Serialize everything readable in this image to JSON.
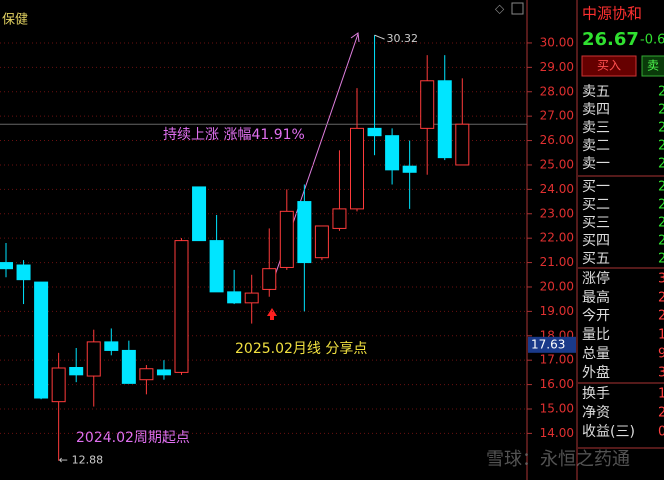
{
  "chart_data": {
    "type": "candlestick",
    "title": "保健",
    "open": [
      21.0,
      20.9,
      20.2,
      15.3,
      16.7,
      16.35,
      17.75,
      17.4,
      16.2,
      16.6,
      16.5,
      24.1,
      21.9,
      19.8,
      19.35,
      19.9,
      20.8,
      23.5,
      21.2,
      22.4,
      23.2,
      26.5,
      26.2,
      24.95,
      26.5,
      28.45,
      25.0
    ],
    "high": [
      21.8,
      21.1,
      20.2,
      17.3,
      17.5,
      18.25,
      18.3,
      17.8,
      16.8,
      17.0,
      22.0,
      24.1,
      22.95,
      20.7,
      20.5,
      22.4,
      24.0,
      24.2,
      22.5,
      25.6,
      28.15,
      30.32,
      26.5,
      26.0,
      29.5,
      29.5,
      28.55
    ],
    "low": [
      20.4,
      19.3,
      15.4,
      12.88,
      16.1,
      15.1,
      17.2,
      16.05,
      15.6,
      16.2,
      16.4,
      21.9,
      19.8,
      19.3,
      18.5,
      19.6,
      20.7,
      19.0,
      21.1,
      22.3,
      23.1,
      25.4,
      24.2,
      23.2,
      24.6,
      25.2,
      25.0
    ],
    "close": [
      20.75,
      20.3,
      15.45,
      16.68,
      16.4,
      17.75,
      17.4,
      16.05,
      16.65,
      16.4,
      21.9,
      21.9,
      19.8,
      19.35,
      19.75,
      20.75,
      23.1,
      21.0,
      22.5,
      23.2,
      26.5,
      26.2,
      24.8,
      24.7,
      28.45,
      25.3,
      26.67
    ],
    "up_color": "#ff3b3b",
    "down_color": "#00e5ff",
    "ylim": [
      12.09,
      31.76
    ],
    "yticks": [
      {
        "value": 14,
        "label": "14.00"
      },
      {
        "value": 15,
        "label": "15.00"
      },
      {
        "value": 16,
        "label": "16.00"
      },
      {
        "value": 17,
        "label": "17.00"
      },
      {
        "value": 18,
        "label": "18.00"
      },
      {
        "value": 19,
        "label": "19.00"
      },
      {
        "value": 20,
        "label": "20.00"
      },
      {
        "value": 21,
        "label": "21.00"
      },
      {
        "value": 22,
        "label": "22.00"
      },
      {
        "value": 23,
        "label": "23.00"
      },
      {
        "value": 24,
        "label": "24.00"
      },
      {
        "value": 25,
        "label": "25.00"
      },
      {
        "value": 26,
        "label": "26.00"
      },
      {
        "value": 27,
        "label": "27.00"
      },
      {
        "value": 28,
        "label": "28.00"
      },
      {
        "value": 29,
        "label": "29.00"
      },
      {
        "value": 30,
        "label": "30.00"
      }
    ],
    "cursor_price": 17.63,
    "annotations": [
      "持续上涨 涨幅41.91%",
      "2025.02月线 分享点",
      "2024.02周期起点"
    ]
  },
  "panel": {
    "name": "中源协和",
    "price": "26.67",
    "change": "-0.6",
    "buy": "买入",
    "sell": "卖",
    "rows": [
      [
        "卖五",
        "2"
      ],
      [
        "卖四",
        "2"
      ],
      [
        "卖三",
        "2"
      ],
      [
        "卖二",
        "2"
      ],
      [
        "卖一",
        "2"
      ],
      [
        "买一",
        "2"
      ],
      [
        "买二",
        "2"
      ],
      [
        "买三",
        "2"
      ],
      [
        "买四",
        "2"
      ],
      [
        "买五",
        "2"
      ],
      [
        "涨停",
        "3"
      ],
      [
        "最高",
        "2"
      ],
      [
        "今开",
        "2"
      ],
      [
        "量比",
        "1"
      ],
      [
        "总量",
        "9"
      ],
      [
        "外盘",
        "3"
      ],
      [
        "换手",
        "1"
      ],
      [
        "净资",
        "2"
      ],
      [
        "收益(三)",
        "0"
      ]
    ]
  },
  "watermark": "雪球：永恒之药通"
}
